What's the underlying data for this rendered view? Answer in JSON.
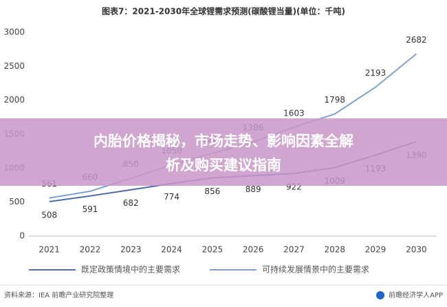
{
  "chart_data": {
    "type": "line",
    "title": "图表7：2021-2030年全球锂需求预测(碳酸锂当量)(单位：千吨)",
    "categories": [
      "2021",
      "2022",
      "2023",
      "2024",
      "2025",
      "2026",
      "2027",
      "2028",
      "2029",
      "2030"
    ],
    "series": [
      {
        "name": "既定政策情境中的主要需求",
        "color": "#4a6aa8",
        "values": [
          508,
          591,
          682,
          774,
          856,
          889,
          922,
          1009,
          1193,
          1390
        ]
      },
      {
        "name": "可持续发展情景中的主要需求",
        "color": "#7c9fd4",
        "values": [
          561,
          660,
          850,
          1050,
          1220,
          1386,
          1603,
          1798,
          2193,
          2682
        ]
      }
    ],
    "ylim": [
      0,
      3000
    ],
    "yticks": [
      0,
      500,
      1000,
      1500,
      2000,
      2500,
      3000
    ],
    "grid": false
  },
  "overlay": {
    "lines": [
      "内胎价格揭秘，市场走势、影响因素全解",
      "析及购买建议指南"
    ]
  },
  "footer": {
    "source": "资料来源：IEA 前瞻产业研究院整理",
    "brand": "前瞻经济学人APP"
  }
}
